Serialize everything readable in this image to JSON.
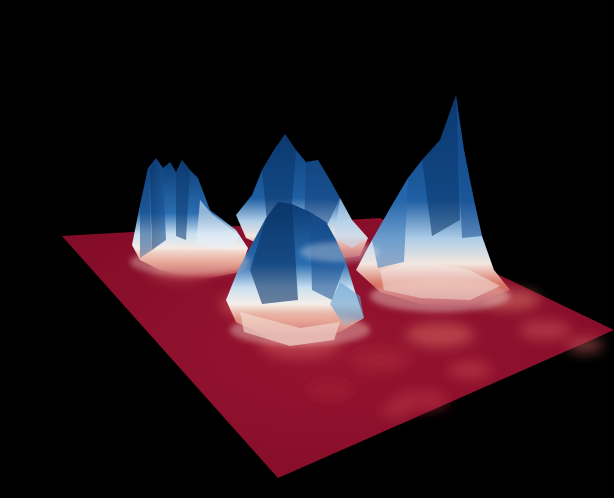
{
  "scene": {
    "background_color": "#000000",
    "colormap": {
      "low": "#67001f",
      "mid_low": "#d6604d",
      "mid": "#f7f7f7",
      "mid_high": "#4393c3",
      "high": "#053061"
    },
    "surface_peak_count": 4
  }
}
